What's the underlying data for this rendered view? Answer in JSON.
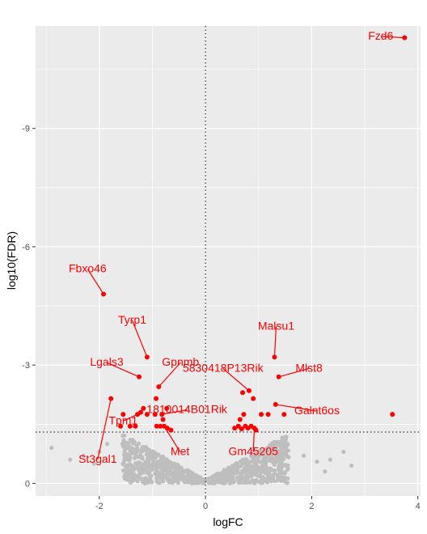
{
  "chart_data": {
    "type": "scatter",
    "xlabel": "logFC",
    "ylabel": "log10(FDR)",
    "xlim": [
      -3.2,
      4.05
    ],
    "ylim": [
      0.32,
      -11.6
    ],
    "x_ticks": [
      -2,
      0,
      2,
      4
    ],
    "x_tick_labels": [
      "-2",
      "0",
      "2",
      "4"
    ],
    "y_ticks": [
      0,
      -3,
      -6,
      -9
    ],
    "y_tick_labels": [
      "0",
      "-3",
      "-6",
      "-9"
    ],
    "reference_lines": {
      "vertical_x": 0,
      "horizontal_y": -1.3
    },
    "grid": true,
    "colors": {
      "background": "#ebebeb",
      "grid": "#ffffff",
      "nonsignificant": "#bebebe",
      "significant": "#ff0000"
    },
    "significant_points": [
      {
        "x": 3.75,
        "y": -11.3
      },
      {
        "x": -1.92,
        "y": -4.8
      },
      {
        "x": -1.1,
        "y": -3.2
      },
      {
        "x": 1.3,
        "y": -3.2
      },
      {
        "x": -1.25,
        "y": -2.7
      },
      {
        "x": 1.38,
        "y": -2.7
      },
      {
        "x": -0.88,
        "y": -2.45
      },
      {
        "x": 0.82,
        "y": -2.35
      },
      {
        "x": 0.7,
        "y": -2.3
      },
      {
        "x": -1.78,
        "y": -2.15
      },
      {
        "x": -0.93,
        "y": -2.15
      },
      {
        "x": 0.9,
        "y": -2.15
      },
      {
        "x": 1.32,
        "y": -2.0
      },
      {
        "x": -1.17,
        "y": -1.9
      },
      {
        "x": -0.73,
        "y": -1.9
      },
      {
        "x": -1.55,
        "y": -1.75
      },
      {
        "x": -1.28,
        "y": -1.75
      },
      {
        "x": -1.22,
        "y": -1.8
      },
      {
        "x": -1.1,
        "y": -1.75
      },
      {
        "x": -0.95,
        "y": -1.75
      },
      {
        "x": -0.82,
        "y": -1.75
      },
      {
        "x": 0.72,
        "y": -1.75
      },
      {
        "x": 1.05,
        "y": -1.75
      },
      {
        "x": 1.18,
        "y": -1.75
      },
      {
        "x": 1.48,
        "y": -1.75
      },
      {
        "x": 3.52,
        "y": -1.75
      },
      {
        "x": -0.8,
        "y": -1.62
      },
      {
        "x": 0.65,
        "y": -1.62
      },
      {
        "x": -1.6,
        "y": -1.45
      },
      {
        "x": -1.42,
        "y": -1.45
      },
      {
        "x": -1.32,
        "y": -1.45
      },
      {
        "x": -0.92,
        "y": -1.45
      },
      {
        "x": -0.85,
        "y": -1.45
      },
      {
        "x": -0.78,
        "y": -1.45
      },
      {
        "x": -0.72,
        "y": -1.4
      },
      {
        "x": -0.65,
        "y": -1.35
      },
      {
        "x": 0.55,
        "y": -1.4
      },
      {
        "x": 0.62,
        "y": -1.45
      },
      {
        "x": 0.68,
        "y": -1.38
      },
      {
        "x": 0.75,
        "y": -1.45
      },
      {
        "x": 0.8,
        "y": -1.4
      },
      {
        "x": 0.86,
        "y": -1.45
      },
      {
        "x": 0.92,
        "y": -1.4
      },
      {
        "x": 0.95,
        "y": -1.35
      }
    ],
    "annotations": [
      {
        "label": "Fzd6",
        "x": 3.75,
        "y": -11.3,
        "lx": 3.3,
        "ly": -11.25
      },
      {
        "label": "Fbxo46",
        "x": -1.92,
        "y": -4.8,
        "lx": -2.22,
        "ly": -5.35
      },
      {
        "label": "Tyrp1",
        "x": -1.1,
        "y": -3.2,
        "lx": -1.38,
        "ly": -4.05
      },
      {
        "label": "Malsu1",
        "x": 1.3,
        "y": -3.2,
        "lx": 1.33,
        "ly": -3.9
      },
      {
        "label": "Lgals3",
        "x": -1.25,
        "y": -2.7,
        "lx": -1.86,
        "ly": -2.98
      },
      {
        "label": "Gpnmb",
        "x": -0.88,
        "y": -2.45,
        "lx": -0.47,
        "ly": -2.98
      },
      {
        "label": "5830418P13Rik",
        "x": 0.82,
        "y": -2.35,
        "lx": 0.33,
        "ly": -2.83
      },
      {
        "label": "Mlst8",
        "x": 1.38,
        "y": -2.7,
        "lx": 1.95,
        "ly": -2.83
      },
      {
        "label": "Galnt6os",
        "x": 1.32,
        "y": -2.0,
        "lx": 2.1,
        "ly": -1.75
      },
      {
        "label": "1810014B01Rik",
        "x": -0.82,
        "y": -1.75,
        "lx": -0.35,
        "ly": -1.78
      },
      {
        "label": "Tpm1",
        "x": -1.28,
        "y": -1.75,
        "lx": -1.55,
        "ly": -1.5
      },
      {
        "label": "Met",
        "x": -0.78,
        "y": -1.45,
        "lx": -0.48,
        "ly": -0.72
      },
      {
        "label": "Gm45205",
        "x": 0.92,
        "y": -1.4,
        "lx": 0.9,
        "ly": -0.72
      },
      {
        "label": "St3gal1",
        "x": -1.78,
        "y": -2.15,
        "lx": -2.03,
        "ly": -0.52
      }
    ]
  }
}
